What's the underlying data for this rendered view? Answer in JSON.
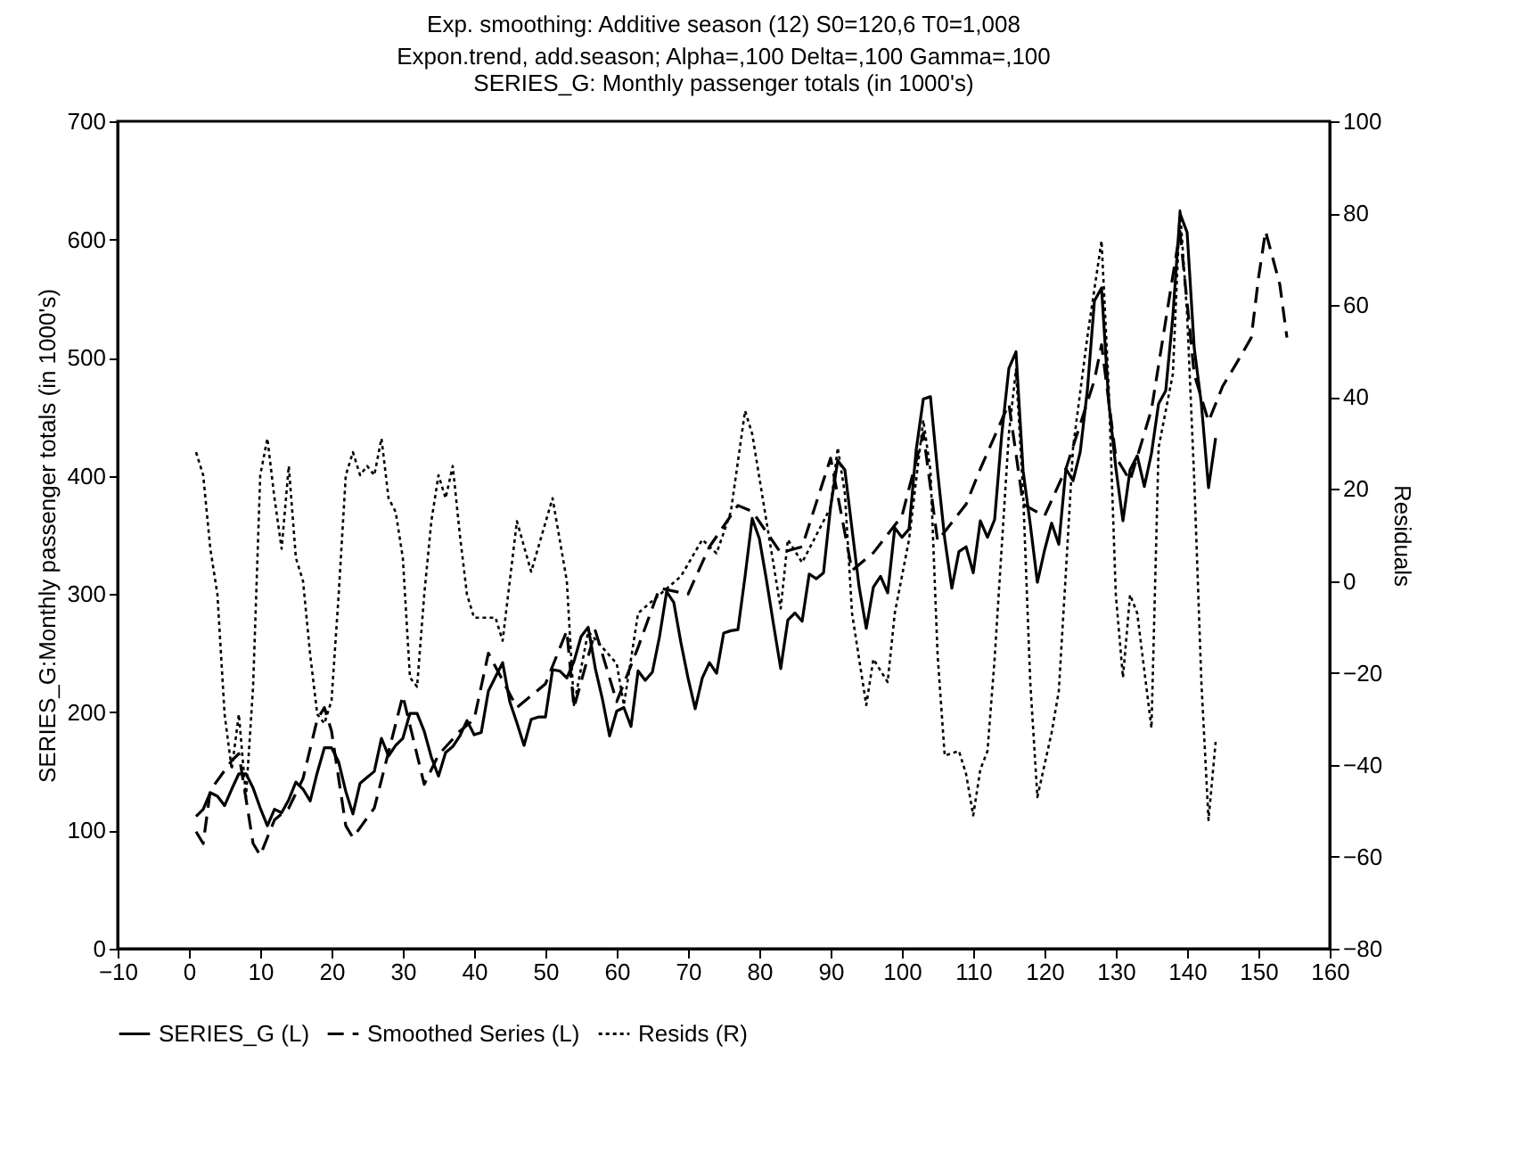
{
  "chart_data": {
    "type": "line",
    "title": "Exp. smoothing: Additive season (12) S0=120,6 T0=1,008",
    "subtitle": "Expon.trend, add.season; Alpha=,100 Delta=,100 Gamma=,100",
    "annotations": [
      "SERIES_G: Monthly passenger totals (in 1000's)"
    ],
    "ylabel": "SERIES_G:Monthly passenger totals (in 1000's)",
    "y2label": "Residuals",
    "xlim": [
      -10,
      160
    ],
    "xticks": [
      -10,
      0,
      10,
      20,
      30,
      40,
      50,
      60,
      70,
      80,
      90,
      100,
      110,
      120,
      130,
      140,
      150,
      160
    ],
    "ylim": [
      0,
      700
    ],
    "yticks": [
      0,
      100,
      200,
      300,
      400,
      500,
      600,
      700
    ],
    "y2lim": [
      -80,
      100
    ],
    "y2ticks": [
      -80,
      -60,
      -40,
      -20,
      0,
      20,
      40,
      60,
      80,
      100
    ],
    "grid": false,
    "legend": "bottom",
    "series": [
      {
        "name": "SERIES_G (L)",
        "color": "#000000",
        "line_style": "solid",
        "x": [
          1,
          2,
          3,
          4,
          5,
          6,
          7,
          8,
          9,
          10,
          11,
          12,
          13,
          14,
          15,
          16,
          17,
          18,
          19,
          20,
          21,
          22,
          23,
          24,
          25,
          26,
          27,
          28,
          29,
          30,
          31,
          32,
          33,
          34,
          35,
          36,
          37,
          38,
          39,
          40,
          41,
          42,
          43,
          44,
          45,
          46,
          47,
          48,
          49,
          50,
          51,
          52,
          53,
          54,
          55,
          56,
          57,
          58,
          59,
          60,
          61,
          62,
          63,
          64,
          65,
          66,
          67,
          68,
          69,
          70,
          71,
          72,
          73,
          74,
          75,
          76,
          77,
          78,
          79,
          80,
          81,
          82,
          83,
          84,
          85,
          86,
          87,
          88,
          89,
          90,
          91,
          92,
          93,
          94,
          95,
          96,
          97,
          98,
          99,
          100,
          101,
          102,
          103,
          104,
          105,
          106,
          107,
          108,
          109,
          110,
          111,
          112,
          113,
          114,
          115,
          116,
          117,
          118,
          119,
          120,
          121,
          122,
          123,
          124,
          125,
          126,
          127,
          128,
          129,
          130,
          131,
          132,
          133,
          134,
          135,
          136,
          137,
          138,
          139,
          140,
          141,
          142,
          143,
          144
        ],
        "values": [
          112,
          118,
          132,
          129,
          121,
          135,
          148,
          148,
          136,
          119,
          104,
          118,
          115,
          126,
          141,
          135,
          125,
          149,
          170,
          170,
          158,
          133,
          114,
          140,
          145,
          150,
          178,
          163,
          172,
          178,
          199,
          199,
          184,
          162,
          146,
          166,
          171,
          180,
          193,
          181,
          183,
          218,
          230,
          242,
          209,
          191,
          172,
          194,
          196,
          196,
          236,
          235,
          229,
          243,
          264,
          272,
          237,
          211,
          180,
          201,
          204,
          188,
          235,
          227,
          234,
          264,
          302,
          293,
          259,
          229,
          203,
          229,
          242,
          233,
          267,
          269,
          270,
          315,
          364,
          347,
          312,
          274,
          237,
          278,
          284,
          277,
          317,
          313,
          318,
          374,
          413,
          405,
          355,
          306,
          271,
          306,
          315,
          301,
          356,
          348,
          355,
          422,
          465,
          467,
          404,
          347,
          305,
          336,
          340,
          318,
          362,
          348,
          363,
          435,
          491,
          505,
          404,
          359,
          310,
          337,
          360,
          342,
          406,
          396,
          420,
          472,
          548,
          559,
          463,
          407,
          362,
          405,
          417,
          391,
          419,
          461,
          472,
          535,
          622,
          606,
          508,
          461,
          390,
          432
        ]
      },
      {
        "name": "Smoothed Series (L)",
        "color": "#000000",
        "line_style": "dashed",
        "x": [
          1,
          2,
          3,
          6,
          7,
          9,
          10,
          12,
          14,
          16,
          18,
          19,
          20,
          22,
          23,
          26,
          30,
          33,
          35,
          38,
          40,
          42,
          46,
          50,
          53,
          54,
          57,
          60,
          63,
          66,
          70,
          73,
          77,
          79,
          83,
          86,
          90,
          93,
          96,
          100,
          103,
          105,
          109,
          111,
          115,
          117,
          120,
          123,
          127,
          128,
          130,
          132,
          135,
          139,
          141,
          143,
          145,
          147,
          149,
          150,
          151,
          153,
          154
        ],
        "values": [
          99,
          89,
          134,
          159,
          165,
          89,
          79,
          109,
          119,
          144,
          194,
          204,
          184,
          104,
          94,
          119,
          214,
          139,
          164,
          184,
          194,
          250,
          204,
          224,
          269,
          204,
          269,
          209,
          255,
          305,
          300,
          340,
          375,
          370,
          335,
          340,
          415,
          320,
          335,
          366,
          436,
          345,
          376,
          406,
          461,
          376,
          366,
          406,
          481,
          511,
          416,
          396,
          456,
          607,
          486,
          446,
          476,
          496,
          517,
          567,
          607,
          562,
          517
        ]
      },
      {
        "name": "Resids (R)",
        "color": "#000000",
        "line_style": "dotted",
        "axis": "y2",
        "x": [
          1,
          2,
          3,
          4,
          5,
          6,
          7,
          8,
          9,
          10,
          11,
          12,
          13,
          14,
          15,
          16,
          17,
          18,
          19,
          20,
          21,
          22,
          23,
          24,
          25,
          26,
          27,
          28,
          29,
          30,
          31,
          32,
          33,
          34,
          35,
          36,
          37,
          38,
          39,
          40,
          43,
          44,
          46,
          48,
          51,
          53,
          54,
          56,
          60,
          61,
          63,
          66,
          69,
          72,
          74,
          76,
          78,
          79,
          81,
          83,
          84,
          86,
          90,
          91,
          92,
          93,
          95,
          96,
          98,
          99,
          101,
          103,
          104,
          105,
          106,
          108,
          109,
          110,
          111,
          112,
          113,
          115,
          116,
          117,
          118,
          119,
          121,
          122,
          123,
          124,
          126,
          128,
          129,
          130,
          131,
          132,
          133,
          135,
          136,
          138,
          139,
          140,
          141,
          142,
          143,
          144
        ],
        "values": [
          28,
          23,
          7,
          -3,
          -29,
          -41,
          -29,
          -47,
          -23,
          23,
          31,
          18,
          7,
          25,
          5,
          0,
          -16,
          -29,
          -31,
          -26,
          -3,
          23,
          28,
          23,
          25,
          23,
          31,
          18,
          15,
          5,
          -21,
          -23,
          -3,
          13,
          23,
          18,
          25,
          10,
          -3,
          -8,
          -8,
          -13,
          13,
          2,
          18,
          0,
          -27,
          -11,
          -18,
          -27,
          -7,
          -3,
          1,
          9,
          6,
          15,
          37,
          32,
          13,
          -6,
          9,
          4,
          16,
          29,
          19,
          -7,
          -27,
          -17,
          -22,
          -7,
          9,
          35,
          24,
          -16,
          -38,
          -37,
          -42,
          -51,
          -41,
          -37,
          -17,
          32,
          46,
          19,
          -22,
          -47,
          -33,
          -24,
          2,
          29,
          53,
          74,
          42,
          -3,
          -21,
          -3,
          -7,
          -32,
          29,
          45,
          81,
          58,
          22,
          -22,
          -52,
          -35
        ]
      }
    ]
  }
}
